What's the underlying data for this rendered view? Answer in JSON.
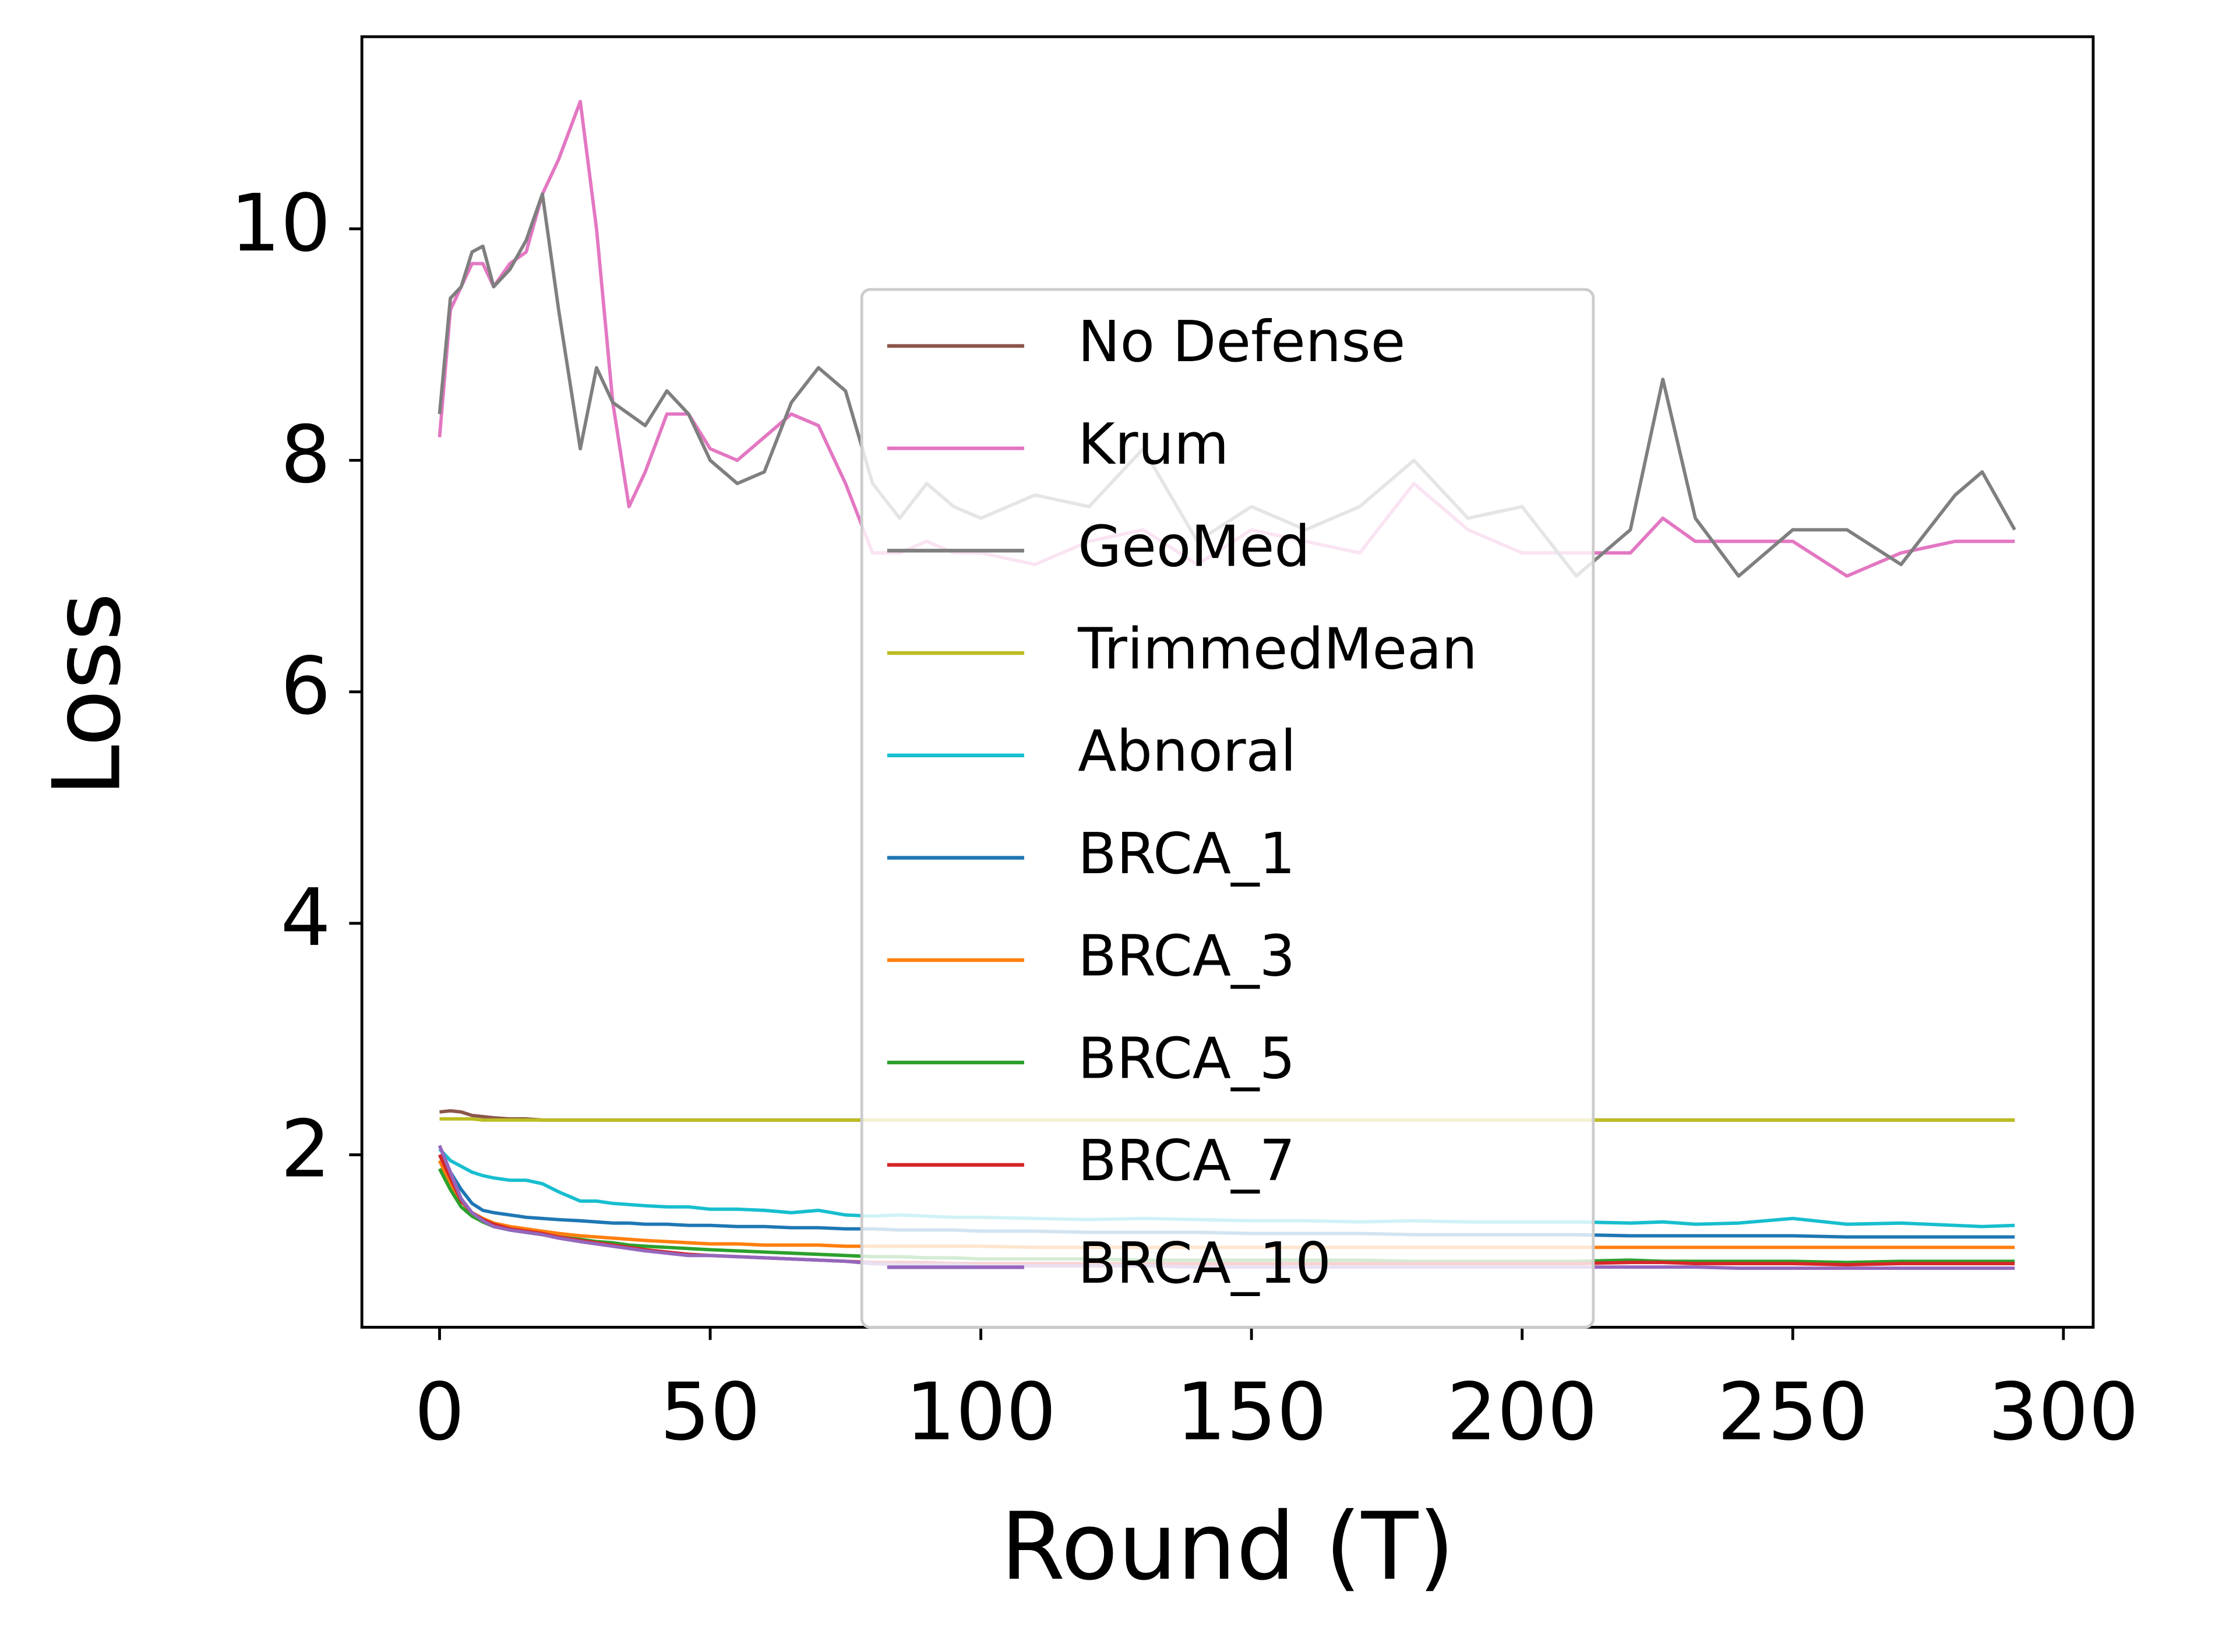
{
  "chart_data": {
    "type": "line",
    "x_label": "Round (T)",
    "y_label": "Loss",
    "x": [
      0,
      2,
      4,
      6,
      8,
      10,
      13,
      16,
      19,
      22,
      26,
      29,
      32,
      35,
      38,
      42,
      46,
      50,
      55,
      60,
      65,
      70,
      75,
      80,
      85,
      90,
      95,
      100,
      110,
      120,
      130,
      140,
      150,
      160,
      170,
      180,
      190,
      200,
      210,
      220,
      226,
      232,
      240,
      250,
      260,
      270,
      280,
      285,
      291
    ],
    "series": [
      {
        "name": "No Defense",
        "color": "#8c564b",
        "values": [
          2.37,
          2.38,
          2.37,
          2.34,
          2.33,
          2.32,
          2.31,
          2.31,
          2.3,
          2.3,
          2.3,
          2.3,
          2.3,
          2.3,
          2.3,
          2.3,
          2.3,
          2.3,
          2.3,
          2.3,
          2.3,
          2.3,
          2.3,
          2.3,
          2.3,
          2.3,
          2.3,
          2.3,
          2.3,
          2.3,
          2.3,
          2.3,
          2.3,
          2.3,
          2.3,
          2.3,
          2.3,
          2.3,
          2.3,
          2.3,
          2.3,
          2.3,
          2.3,
          2.3,
          2.3,
          2.3,
          2.3,
          2.3,
          2.3
        ]
      },
      {
        "name": "Krum",
        "color": "#e377c2",
        "values": [
          8.2,
          9.3,
          9.5,
          9.7,
          9.7,
          9.5,
          9.7,
          9.8,
          10.3,
          10.6,
          11.1,
          10.0,
          8.5,
          7.6,
          7.9,
          8.4,
          8.4,
          8.1,
          8.0,
          8.2,
          8.4,
          8.3,
          7.8,
          7.2,
          7.2,
          7.3,
          7.2,
          7.2,
          7.1,
          7.3,
          7.4,
          7.1,
          7.4,
          7.3,
          7.2,
          7.8,
          7.4,
          7.2,
          7.2,
          7.2,
          7.5,
          7.3,
          7.3,
          7.3,
          7.0,
          7.2,
          7.3,
          7.3,
          7.3
        ]
      },
      {
        "name": "GeoMed",
        "color": "#7f7f7f",
        "values": [
          8.4,
          9.4,
          9.5,
          9.8,
          9.85,
          9.5,
          9.65,
          9.9,
          10.3,
          9.3,
          8.1,
          8.8,
          8.5,
          8.4,
          8.3,
          8.6,
          8.4,
          8.0,
          7.8,
          7.9,
          8.5,
          8.8,
          8.6,
          7.8,
          7.5,
          7.8,
          7.6,
          7.5,
          7.7,
          7.6,
          8.1,
          7.3,
          7.6,
          7.4,
          7.6,
          8.0,
          7.5,
          7.6,
          7.0,
          7.4,
          8.7,
          7.5,
          7.0,
          7.4,
          7.4,
          7.1,
          7.7,
          7.9,
          7.4
        ]
      },
      {
        "name": "TrimmedMean",
        "color": "#bcbd22",
        "values": [
          2.31,
          2.31,
          2.31,
          2.31,
          2.3,
          2.3,
          2.3,
          2.3,
          2.3,
          2.3,
          2.3,
          2.3,
          2.3,
          2.3,
          2.3,
          2.3,
          2.3,
          2.3,
          2.3,
          2.3,
          2.3,
          2.3,
          2.3,
          2.3,
          2.3,
          2.3,
          2.3,
          2.3,
          2.3,
          2.3,
          2.3,
          2.3,
          2.3,
          2.3,
          2.3,
          2.3,
          2.3,
          2.3,
          2.3,
          2.3,
          2.3,
          2.3,
          2.3,
          2.3,
          2.3,
          2.3,
          2.3,
          2.3,
          2.3
        ]
      },
      {
        "name": "Abnoral",
        "color": "#17becf",
        "values": [
          2.05,
          1.95,
          1.9,
          1.85,
          1.82,
          1.8,
          1.78,
          1.78,
          1.75,
          1.68,
          1.6,
          1.6,
          1.58,
          1.57,
          1.56,
          1.55,
          1.55,
          1.53,
          1.53,
          1.52,
          1.5,
          1.52,
          1.48,
          1.47,
          1.48,
          1.47,
          1.46,
          1.46,
          1.45,
          1.44,
          1.45,
          1.44,
          1.43,
          1.43,
          1.42,
          1.43,
          1.42,
          1.42,
          1.42,
          1.41,
          1.42,
          1.4,
          1.41,
          1.45,
          1.4,
          1.41,
          1.39,
          1.38,
          1.39
        ]
      },
      {
        "name": "BRCA_1",
        "color": "#1f77b4",
        "values": [
          2.0,
          1.85,
          1.7,
          1.58,
          1.52,
          1.5,
          1.48,
          1.46,
          1.45,
          1.44,
          1.43,
          1.42,
          1.41,
          1.41,
          1.4,
          1.4,
          1.39,
          1.39,
          1.38,
          1.38,
          1.37,
          1.37,
          1.36,
          1.36,
          1.35,
          1.35,
          1.35,
          1.34,
          1.34,
          1.33,
          1.33,
          1.33,
          1.32,
          1.32,
          1.32,
          1.31,
          1.31,
          1.31,
          1.31,
          1.3,
          1.3,
          1.3,
          1.3,
          1.3,
          1.29,
          1.29,
          1.29,
          1.29,
          1.29
        ]
      },
      {
        "name": "BRCA_3",
        "color": "#ff7f0e",
        "values": [
          1.95,
          1.75,
          1.6,
          1.5,
          1.45,
          1.41,
          1.38,
          1.36,
          1.34,
          1.32,
          1.3,
          1.29,
          1.28,
          1.27,
          1.26,
          1.25,
          1.24,
          1.23,
          1.23,
          1.22,
          1.22,
          1.22,
          1.21,
          1.21,
          1.21,
          1.21,
          1.21,
          1.21,
          1.2,
          1.2,
          1.2,
          1.2,
          1.2,
          1.2,
          1.2,
          1.2,
          1.2,
          1.2,
          1.2,
          1.2,
          1.2,
          1.2,
          1.2,
          1.2,
          1.2,
          1.2,
          1.2,
          1.2,
          1.2
        ]
      },
      {
        "name": "BRCA_5",
        "color": "#2ca02c",
        "values": [
          1.88,
          1.7,
          1.55,
          1.47,
          1.42,
          1.38,
          1.35,
          1.33,
          1.31,
          1.29,
          1.27,
          1.25,
          1.24,
          1.22,
          1.21,
          1.2,
          1.19,
          1.18,
          1.17,
          1.16,
          1.15,
          1.14,
          1.13,
          1.12,
          1.12,
          1.11,
          1.11,
          1.1,
          1.1,
          1.1,
          1.09,
          1.09,
          1.09,
          1.09,
          1.09,
          1.08,
          1.08,
          1.08,
          1.08,
          1.09,
          1.08,
          1.08,
          1.08,
          1.08,
          1.07,
          1.08,
          1.08,
          1.08,
          1.08
        ]
      },
      {
        "name": "BRCA_7",
        "color": "#d62728",
        "values": [
          2.0,
          1.8,
          1.6,
          1.5,
          1.44,
          1.4,
          1.36,
          1.34,
          1.32,
          1.29,
          1.26,
          1.24,
          1.22,
          1.2,
          1.18,
          1.16,
          1.14,
          1.13,
          1.12,
          1.11,
          1.1,
          1.09,
          1.08,
          1.07,
          1.07,
          1.07,
          1.06,
          1.06,
          1.06,
          1.06,
          1.06,
          1.06,
          1.06,
          1.06,
          1.06,
          1.06,
          1.06,
          1.06,
          1.06,
          1.07,
          1.07,
          1.06,
          1.06,
          1.06,
          1.05,
          1.06,
          1.06,
          1.06,
          1.06
        ]
      },
      {
        "name": "BRCA_10",
        "color": "#9467bd",
        "values": [
          2.08,
          1.85,
          1.62,
          1.5,
          1.43,
          1.38,
          1.35,
          1.33,
          1.31,
          1.28,
          1.25,
          1.23,
          1.21,
          1.19,
          1.17,
          1.15,
          1.13,
          1.13,
          1.12,
          1.11,
          1.1,
          1.09,
          1.08,
          1.06,
          1.05,
          1.05,
          1.05,
          1.04,
          1.04,
          1.04,
          1.04,
          1.03,
          1.03,
          1.03,
          1.03,
          1.03,
          1.03,
          1.03,
          1.03,
          1.03,
          1.03,
          1.03,
          1.02,
          1.02,
          1.02,
          1.02,
          1.02,
          1.02,
          1.02
        ]
      }
    ],
    "xlim": [
      -14.35,
      305.5
    ],
    "ylim": [
      0.51,
      11.66
    ],
    "xticks": [
      0,
      50,
      100,
      150,
      200,
      250,
      300
    ],
    "yticks": [
      2,
      4,
      6,
      8,
      10
    ],
    "grid": false,
    "legend": "lower center"
  }
}
